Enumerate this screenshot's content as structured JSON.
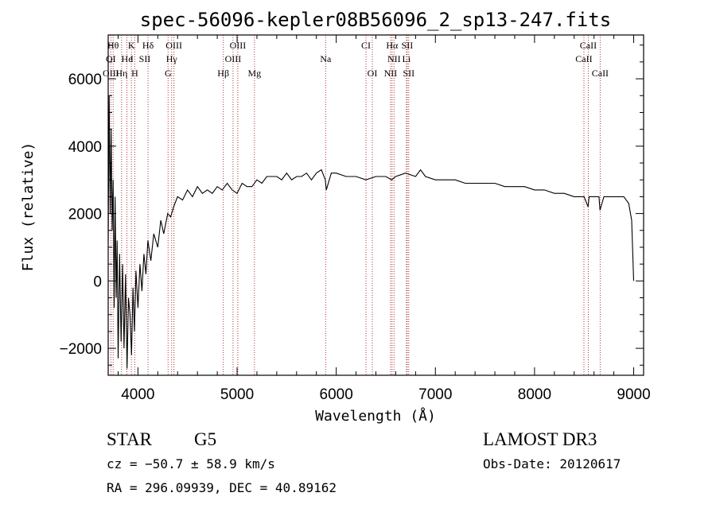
{
  "chart_data": {
    "type": "line",
    "title": "spec-56096-kepler08B56096_2_sp13-247.fits",
    "xlabel": "Wavelength (Å)",
    "ylabel": "Flux (relative)",
    "xlim": [
      3700,
      9100
    ],
    "ylim": [
      -2800,
      7300
    ],
    "xticks": [
      4000,
      5000,
      6000,
      7000,
      8000,
      9000
    ],
    "yticks": [
      -2000,
      0,
      2000,
      4000,
      6000
    ],
    "series": [
      {
        "name": "flux",
        "x": [
          3700,
          3710,
          3720,
          3730,
          3740,
          3750,
          3760,
          3770,
          3780,
          3790,
          3800,
          3815,
          3830,
          3845,
          3860,
          3875,
          3890,
          3905,
          3920,
          3935,
          3950,
          3965,
          3980,
          4000,
          4020,
          4040,
          4060,
          4080,
          4100,
          4130,
          4160,
          4200,
          4230,
          4260,
          4300,
          4330,
          4360,
          4400,
          4450,
          4500,
          4550,
          4600,
          4650,
          4700,
          4750,
          4800,
          4850,
          4900,
          4950,
          5000,
          5050,
          5100,
          5150,
          5200,
          5250,
          5300,
          5350,
          5400,
          5450,
          5500,
          5550,
          5600,
          5650,
          5700,
          5750,
          5800,
          5850,
          5890,
          5900,
          5950,
          6000,
          6100,
          6200,
          6300,
          6400,
          6500,
          6560,
          6600,
          6700,
          6800,
          6850,
          6900,
          7000,
          7100,
          7200,
          7300,
          7400,
          7500,
          7600,
          7700,
          7800,
          7900,
          8000,
          8100,
          8200,
          8300,
          8400,
          8500,
          8540,
          8550,
          8600,
          8650,
          8660,
          8700,
          8750,
          8800,
          8850,
          8900,
          8950,
          8980,
          9000
        ],
        "values": [
          1200,
          5500,
          2000,
          4500,
          1500,
          3000,
          -800,
          2500,
          -500,
          1200,
          -2300,
          800,
          -1800,
          500,
          -2000,
          200,
          -2600,
          -500,
          -1000,
          -2200,
          -200,
          -1500,
          300,
          -800,
          500,
          -300,
          800,
          200,
          1200,
          600,
          1400,
          1000,
          1800,
          1400,
          2000,
          1900,
          2200,
          2500,
          2400,
          2700,
          2500,
          2800,
          2600,
          2700,
          2600,
          2800,
          2700,
          2900,
          2700,
          2600,
          2900,
          2800,
          2800,
          3000,
          2900,
          3100,
          3100,
          3100,
          3000,
          3200,
          3000,
          3100,
          3100,
          3200,
          3000,
          3200,
          3300,
          3000,
          2700,
          3200,
          3200,
          3100,
          3100,
          3000,
          3100,
          3100,
          3000,
          3100,
          3200,
          3100,
          3300,
          3100,
          3000,
          3000,
          3000,
          2900,
          2900,
          2900,
          2900,
          2800,
          2800,
          2800,
          2700,
          2700,
          2600,
          2600,
          2500,
          2500,
          2200,
          2500,
          2500,
          2500,
          2100,
          2500,
          2500,
          2500,
          2500,
          2500,
          2300,
          1800,
          0
        ]
      }
    ],
    "line_labels": [
      {
        "text": "Hθ",
        "x": 3750,
        "row": 1
      },
      {
        "text": "K",
        "x": 3934,
        "row": 1
      },
      {
        "text": "Hδ",
        "x": 4102,
        "row": 1
      },
      {
        "text": "OIII",
        "x": 4363,
        "row": 1
      },
      {
        "text": "OIII",
        "x": 5007,
        "row": 1
      },
      {
        "text": "CI",
        "x": 6300,
        "row": 1
      },
      {
        "text": "Hα",
        "x": 6563,
        "row": 1
      },
      {
        "text": "SII",
        "x": 6716,
        "row": 1
      },
      {
        "text": "CaII",
        "x": 8542,
        "row": 1
      },
      {
        "text": "OI",
        "x": 3727,
        "row": 2
      },
      {
        "text": "He",
        "x": 3889,
        "row": 2
      },
      {
        "text": "I",
        "x": 3940,
        "row": 2
      },
      {
        "text": "SII",
        "x": 4069,
        "row": 2
      },
      {
        "text": "Hγ",
        "x": 4340,
        "row": 2
      },
      {
        "text": "OIII",
        "x": 4959,
        "row": 2
      },
      {
        "text": "Na",
        "x": 5893,
        "row": 2
      },
      {
        "text": "NII",
        "x": 6583,
        "row": 2
      },
      {
        "text": "Li",
        "x": 6708,
        "row": 2
      },
      {
        "text": "CaII",
        "x": 8498,
        "row": 2
      },
      {
        "text": "OIII",
        "x": 3727,
        "row": 3
      },
      {
        "text": "Hη",
        "x": 3835,
        "row": 3
      },
      {
        "text": "H",
        "x": 3968,
        "row": 3
      },
      {
        "text": "G",
        "x": 4304,
        "row": 3
      },
      {
        "text": "Hβ",
        "x": 4861,
        "row": 3
      },
      {
        "text": "Mg",
        "x": 5175,
        "row": 3
      },
      {
        "text": "OI",
        "x": 6364,
        "row": 3
      },
      {
        "text": "NII",
        "x": 6548,
        "row": 3
      },
      {
        "text": "SII",
        "x": 6731,
        "row": 3
      },
      {
        "text": "CaII",
        "x": 8662,
        "row": 3
      }
    ],
    "line_marks": [
      3727,
      3750,
      3835,
      3889,
      3934,
      3968,
      4102,
      4304,
      4340,
      4363,
      4861,
      4959,
      5007,
      5175,
      5893,
      6300,
      6364,
      6548,
      6563,
      6583,
      6708,
      6716,
      6731,
      8498,
      8542,
      8662
    ]
  },
  "info": {
    "class_label": "STAR",
    "subclass": "G5",
    "survey": "LAMOST DR3",
    "cz": "cz = −50.7 ± 58.9 km/s",
    "obs_date": "Obs-Date: 20120617",
    "coords": "RA = 296.09939, DEC =  40.89162"
  },
  "colors": {
    "line": "#000000",
    "marker": "#b03030"
  }
}
